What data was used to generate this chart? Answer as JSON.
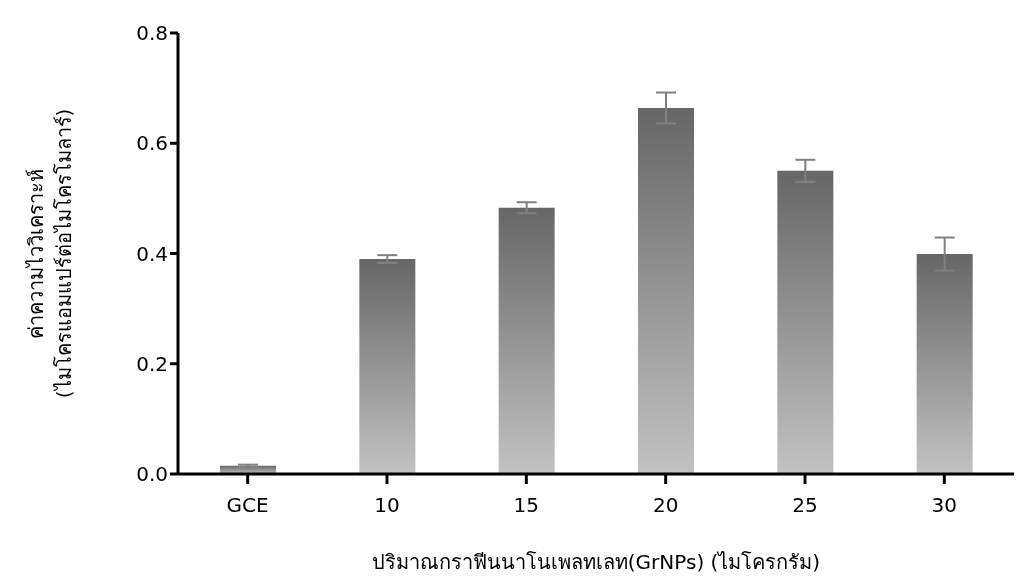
{
  "chart_data": {
    "type": "bar",
    "xlabel": "ปริมาณกราฟีนนาโนเพลทเลท(GrNPs) (ไมโครกรัม)",
    "ylabel": "ค่าความไววิเคราะห์\n(ไมโครแอมแปร์ต่อไมโครโมลาร์)",
    "categories": [
      "GCE",
      "10",
      "15",
      "20",
      "25",
      "30"
    ],
    "values": [
      0.015,
      0.39,
      0.483,
      0.664,
      0.55,
      0.399
    ],
    "errors": [
      0.002,
      0.007,
      0.01,
      0.028,
      0.02,
      0.03
    ],
    "color": "#666666",
    "ylim": [
      0,
      0.8
    ],
    "yticks": [
      {
        "value": 0,
        "label": "0.0"
      },
      {
        "value": 0.2,
        "label": "0.2"
      },
      {
        "value": 0.4,
        "label": "0.4"
      },
      {
        "value": 0.6,
        "label": "0.6"
      },
      {
        "value": 0.8,
        "label": "0.8"
      }
    ],
    "grid": false,
    "legend": false
  }
}
